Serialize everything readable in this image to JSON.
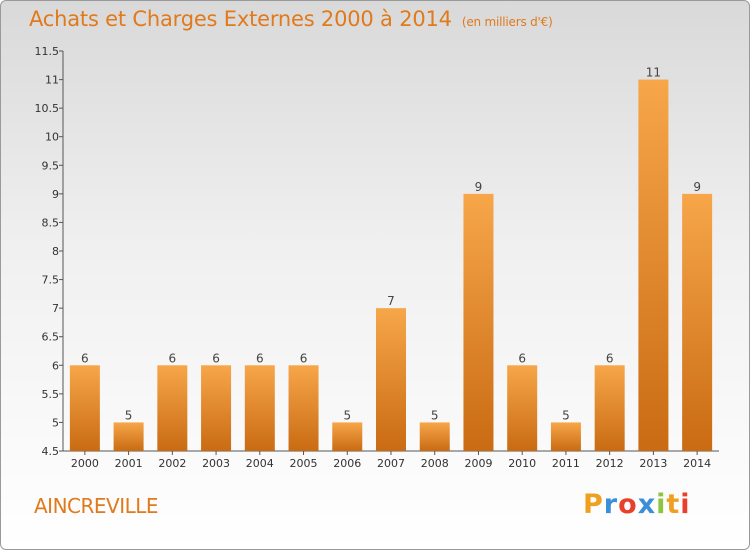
{
  "header": {
    "title": "Achats et Charges Externes 2000 à 2014",
    "unit": "(en milliers d'€)"
  },
  "footer": {
    "commune": "AINCREVILLE",
    "logo_letters": [
      "P",
      "r",
      "o",
      "x",
      "i",
      "t",
      "i"
    ],
    "logo_colors": [
      "#f0a020",
      "#3a8fd6",
      "#e8402a",
      "#3a8fd6",
      "#8cc63e",
      "#f0a020",
      "#e8402a"
    ]
  },
  "colors": {
    "bar_light": "#f7a64a",
    "bar_dark": "#c96b12",
    "accent": "#e07a1c"
  },
  "chart_data": {
    "type": "bar",
    "title": "Achats et Charges Externes 2000 à 2014",
    "categories": [
      "2000",
      "2001",
      "2002",
      "2003",
      "2004",
      "2005",
      "2006",
      "2007",
      "2008",
      "2009",
      "2010",
      "2011",
      "2012",
      "2013",
      "2014"
    ],
    "values": [
      6,
      5,
      6,
      6,
      6,
      6,
      5,
      7,
      5,
      9,
      6,
      5,
      6,
      11,
      9
    ],
    "data_labels": [
      "6",
      "5",
      "6",
      "6",
      "6",
      "6",
      "5",
      "7",
      "5",
      "9",
      "6",
      "5",
      "6",
      "11",
      "9"
    ],
    "ylim": [
      4.5,
      11.5
    ],
    "yticks": [
      4.5,
      5,
      5.5,
      6,
      6.5,
      7,
      7.5,
      8,
      8.5,
      9,
      9.5,
      10,
      10.5,
      11,
      11.5
    ],
    "ytick_labels": [
      "4.5",
      "5",
      "5.5",
      "6",
      "6.5",
      "7",
      "7.5",
      "8",
      "8.5",
      "9",
      "9.5",
      "10",
      "10.5",
      "11",
      "11.5"
    ],
    "grid": false,
    "xlabel": "",
    "ylabel": ""
  }
}
